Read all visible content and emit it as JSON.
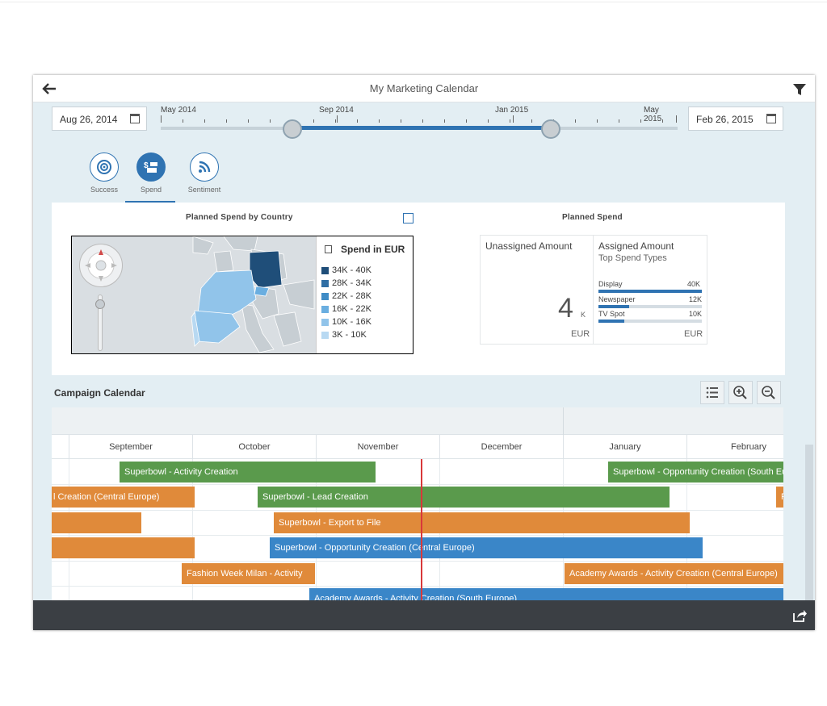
{
  "window": {
    "title": "My Marketing Calendar"
  },
  "range": {
    "start_date": "Aug 26, 2014",
    "end_date": "Feb 26, 2015",
    "labels": [
      "May 2014",
      "Sep 2014",
      "Jan 2015",
      "May 2015"
    ],
    "selected_from": 0.255,
    "selected_to": 0.755
  },
  "tabs": [
    {
      "label": "Success",
      "icon": "target-icon",
      "selected": false
    },
    {
      "label": "Spend",
      "icon": "money-icon",
      "selected": true
    },
    {
      "label": "Sentiment",
      "icon": "feed-icon",
      "selected": false
    }
  ],
  "map_panel": {
    "title": "Planned Spend by Country",
    "legend_title": "Spend in EUR",
    "legend": [
      {
        "label": "34K - 40K",
        "color": "#1f4e79"
      },
      {
        "label": "28K - 34K",
        "color": "#2f6ea4"
      },
      {
        "label": "22K - 28K",
        "color": "#3f8cc6"
      },
      {
        "label": "16K - 22K",
        "color": "#6aaee0"
      },
      {
        "label": "10K - 16K",
        "color": "#91c4ea"
      },
      {
        "label": "3K - 10K",
        "color": "#b8d9f2"
      }
    ]
  },
  "spend_panel": {
    "title": "Planned Spend",
    "unassigned_label": "Unassigned Amount",
    "unassigned_value": "4",
    "unassigned_unit": "K",
    "unassigned_currency": "EUR",
    "assigned_label": "Assigned Amount",
    "assigned_subtitle": "Top Spend Types",
    "assigned_currency": "EUR",
    "types": [
      {
        "name": "Display",
        "value": "40K",
        "fraction": 1.0
      },
      {
        "name": "Newspaper",
        "value": "12K",
        "fraction": 0.3
      },
      {
        "name": "TV Spot",
        "value": "10K",
        "fraction": 0.25
      }
    ]
  },
  "calendar": {
    "title": "Campaign Calendar",
    "months": [
      "September",
      "October",
      "November",
      "December",
      "January",
      "February"
    ],
    "bars": [
      {
        "label": "Superbowl - Activity Creation",
        "color": "green"
      },
      {
        "label": "Superbowl - Opportunity Creation (South Eu",
        "color": "green"
      },
      {
        "label": "l Creation (Central Europe)",
        "color": "orange"
      },
      {
        "label": "Superbowl - Lead Creation",
        "color": "green"
      },
      {
        "label": "F",
        "color": "orange"
      },
      {
        "label": "",
        "color": "orange"
      },
      {
        "label": "Superbowl - Export to File",
        "color": "orange"
      },
      {
        "label": "",
        "color": "orange"
      },
      {
        "label": "Superbowl - Opportunity Creation (Central Europe)",
        "color": "blue"
      },
      {
        "label": "Fashion Week Milan - Activity",
        "color": "orange"
      },
      {
        "label": "Academy Awards - Activity Creation (Central Europe)",
        "color": "orange"
      },
      {
        "label": "Academy Awards - Activity Creation (South Europe)",
        "color": "blue"
      }
    ]
  },
  "icons": {
    "back": "back-arrow-icon",
    "filter": "filter-icon",
    "calendar": "calendar-icon",
    "expand": "expand-icon",
    "list": "list-icon",
    "zoom_in": "zoom-in-icon",
    "zoom_out": "zoom-out-icon",
    "share": "share-icon"
  }
}
